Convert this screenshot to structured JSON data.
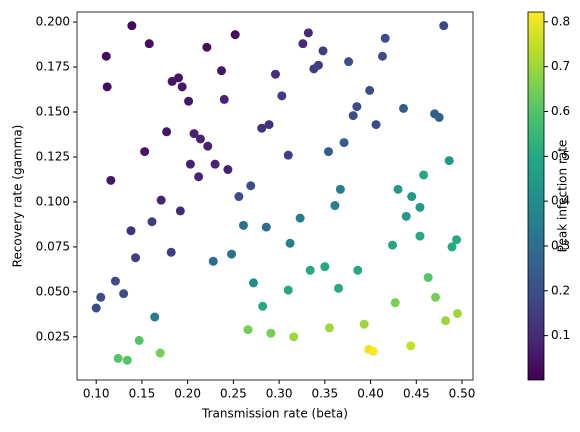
{
  "chart_data": {
    "type": "scatter",
    "xlabel": "Transmission rate (beta)",
    "ylabel": "Recovery rate (gamma)",
    "colorbar_label": "Peak infection rate",
    "colormap": "viridis",
    "xlim": [
      0.079,
      0.512
    ],
    "ylim": [
      0.001,
      0.2056
    ],
    "clim": [
      0.001,
      0.822
    ],
    "xticks": [
      {
        "value": 0.1,
        "label": "0.10"
      },
      {
        "value": 0.15,
        "label": "0.15"
      },
      {
        "value": 0.2,
        "label": "0.20"
      },
      {
        "value": 0.25,
        "label": "0.25"
      },
      {
        "value": 0.3,
        "label": "0.30"
      },
      {
        "value": 0.35,
        "label": "0.35"
      },
      {
        "value": 0.4,
        "label": "0.40"
      },
      {
        "value": 0.45,
        "label": "0.45"
      },
      {
        "value": 0.5,
        "label": "0.50"
      }
    ],
    "yticks": [
      0.025,
      {
        "value": 0.05,
        "label": "0.050"
      },
      0.075,
      {
        "value": 0.1,
        "label": "0.100"
      },
      0.125,
      {
        "value": 0.15,
        "label": "0.150"
      },
      0.175,
      {
        "value": 0.2,
        "label": "0.200"
      }
    ],
    "cticks": [
      0.1,
      0.2,
      0.3,
      0.4,
      0.5,
      0.6,
      0.7,
      0.8
    ],
    "x": [
      0.139,
      0.111,
      0.158,
      0.112,
      0.221,
      0.252,
      0.237,
      0.332,
      0.326,
      0.348,
      0.48,
      0.416,
      0.413,
      0.376,
      0.343,
      0.338,
      0.296,
      0.183,
      0.19,
      0.194,
      0.201,
      0.24,
      0.303,
      0.399,
      0.385,
      0.381,
      0.436,
      0.475,
      0.47,
      0.153,
      0.116,
      0.177,
      0.207,
      0.214,
      0.222,
      0.281,
      0.289,
      0.31,
      0.406,
      0.354,
      0.371,
      0.203,
      0.23,
      0.212,
      0.244,
      0.171,
      0.269,
      0.256,
      0.192,
      0.161,
      0.138,
      0.143,
      0.261,
      0.286,
      0.323,
      0.312,
      0.361,
      0.367,
      0.43,
      0.445,
      0.454,
      0.439,
      0.458,
      0.486,
      0.494,
      0.489,
      0.454,
      0.424,
      0.182,
      0.228,
      0.248,
      0.121,
      0.105,
      0.1,
      0.13,
      0.164,
      0.272,
      0.282,
      0.31,
      0.334,
      0.35,
      0.365,
      0.386,
      0.463,
      0.471,
      0.427,
      0.495,
      0.482,
      0.266,
      0.291,
      0.316,
      0.355,
      0.393,
      0.444,
      0.398,
      0.403,
      0.147,
      0.124,
      0.134,
      0.17
    ],
    "y": [
      0.198,
      0.181,
      0.188,
      0.164,
      0.186,
      0.193,
      0.173,
      0.194,
      0.188,
      0.184,
      0.198,
      0.191,
      0.181,
      0.178,
      0.176,
      0.174,
      0.171,
      0.167,
      0.169,
      0.164,
      0.156,
      0.157,
      0.159,
      0.162,
      0.153,
      0.148,
      0.152,
      0.147,
      0.149,
      0.128,
      0.112,
      0.139,
      0.138,
      0.135,
      0.131,
      0.141,
      0.143,
      0.126,
      0.143,
      0.128,
      0.133,
      0.121,
      0.121,
      0.114,
      0.118,
      0.101,
      0.109,
      0.103,
      0.095,
      0.089,
      0.084,
      0.069,
      0.087,
      0.086,
      0.091,
      0.077,
      0.098,
      0.107,
      0.107,
      0.103,
      0.097,
      0.092,
      0.115,
      0.123,
      0.079,
      0.075,
      0.081,
      0.076,
      0.072,
      0.067,
      0.071,
      0.056,
      0.047,
      0.041,
      0.049,
      0.036,
      0.055,
      0.042,
      0.051,
      0.062,
      0.064,
      0.052,
      0.062,
      0.058,
      0.047,
      0.044,
      0.038,
      0.034,
      0.029,
      0.027,
      0.025,
      0.03,
      0.032,
      0.02,
      0.018,
      0.017,
      0.023,
      0.013,
      0.012,
      0.016
    ],
    "c": [
      0.02,
      0.03,
      0.03,
      0.03,
      0.03,
      0.03,
      0.05,
      0.1,
      0.1,
      0.15,
      0.18,
      0.2,
      0.2,
      0.2,
      0.15,
      0.15,
      0.12,
      0.05,
      0.05,
      0.05,
      0.05,
      0.08,
      0.15,
      0.2,
      0.2,
      0.2,
      0.25,
      0.25,
      0.25,
      0.05,
      0.05,
      0.05,
      0.08,
      0.08,
      0.08,
      0.12,
      0.12,
      0.15,
      0.2,
      0.25,
      0.25,
      0.08,
      0.08,
      0.08,
      0.08,
      0.08,
      0.2,
      0.2,
      0.1,
      0.15,
      0.12,
      0.15,
      0.3,
      0.3,
      0.35,
      0.35,
      0.35,
      0.35,
      0.45,
      0.45,
      0.45,
      0.45,
      0.5,
      0.45,
      0.5,
      0.5,
      0.5,
      0.5,
      0.15,
      0.3,
      0.3,
      0.2,
      0.2,
      0.2,
      0.2,
      0.35,
      0.4,
      0.5,
      0.5,
      0.5,
      0.5,
      0.5,
      0.5,
      0.6,
      0.65,
      0.65,
      0.7,
      0.7,
      0.65,
      0.65,
      0.7,
      0.7,
      0.7,
      0.75,
      0.8,
      0.82,
      0.6,
      0.6,
      0.6,
      0.65
    ]
  }
}
